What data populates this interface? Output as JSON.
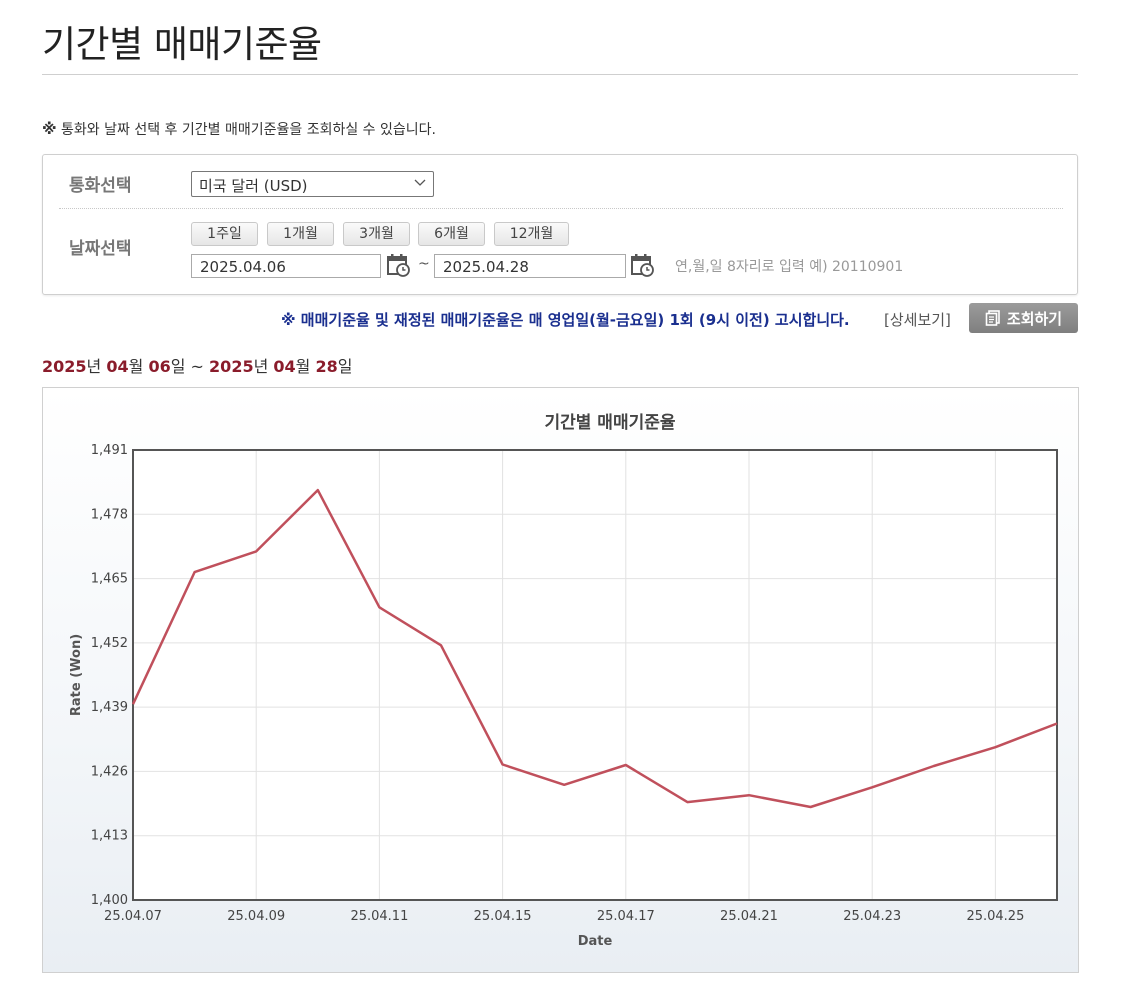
{
  "page": {
    "title": "기간별 매매기준율",
    "notice_mark": "※",
    "notice": "통화와 날짜 선택 후 기간별 매매기준율을 조회하실 수 있습니다."
  },
  "form": {
    "currency_label": "통화선택",
    "currency_selected": "미국 달러 (USD)",
    "date_label": "날짜선택",
    "period_buttons": [
      "1주일",
      "1개월",
      "3개월",
      "6개월",
      "12개월"
    ],
    "start_date": "2025.04.06",
    "separator": "~",
    "end_date": "2025.04.28",
    "date_hint": "연,월,일 8자리로 입력 예) 20110901"
  },
  "announcement": {
    "text": "※ 매매기준율 및 재정된 매매기준율은 매 영업일(월-금요일) 1회 (9시 이전) 고시합니다.",
    "detail_link": "[상세보기]",
    "search_button": "조회하기"
  },
  "range": {
    "start_year": "2025",
    "start_month": "04",
    "start_day": "06",
    "end_year": "2025",
    "end_month": "04",
    "end_day": "28",
    "year_unit": "년",
    "month_unit": "월",
    "day_unit": "일",
    "tilde": "~"
  },
  "colors": {
    "line": "#c0505c",
    "range_accent": "#8a1c2b",
    "announce": "#1a2f8f"
  },
  "chart_data": {
    "type": "line",
    "title": "기간별 매매기준율",
    "xlabel": "Date",
    "ylabel": "Rate (Won)",
    "x": [
      "25.04.07",
      "25.04.08",
      "25.04.09",
      "25.04.10",
      "25.04.11",
      "25.04.14",
      "25.04.15",
      "25.04.16",
      "25.04.17",
      "25.04.18",
      "25.04.21",
      "25.04.22",
      "25.04.23",
      "25.04.24",
      "25.04.25",
      "25.04.28"
    ],
    "x_tick_labels": [
      "25.04.07",
      "25.04.09",
      "25.04.11",
      "25.04.15",
      "25.04.17",
      "25.04.21",
      "25.04.23",
      "25.04.25"
    ],
    "y_ticks": [
      "1,400",
      "1,413",
      "1,426",
      "1,439",
      "1,452",
      "1,465",
      "1,478",
      "1,491"
    ],
    "ylim": [
      1400,
      1491
    ],
    "grid": true,
    "series": [
      {
        "values": [
          1439.6,
          1466.3,
          1470.5,
          1482.9,
          1459.2,
          1451.5,
          1427.4,
          1423.3,
          1427.3,
          1419.8,
          1421.2,
          1418.8,
          1422.8,
          1427.1,
          1430.9,
          1435.7
        ]
      }
    ]
  }
}
